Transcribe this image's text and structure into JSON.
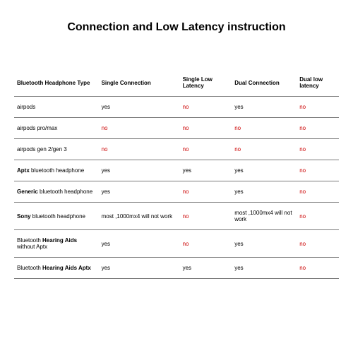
{
  "title": "Connection and Low Latency instruction",
  "colors": {
    "no_color": "#cc0000",
    "text_color": "#000000",
    "border_color": "#7a7a7a",
    "background": "#ffffff"
  },
  "typography": {
    "title_fontsize": 16,
    "table_fontsize": 8,
    "font_family": "Arial"
  },
  "table": {
    "columns": [
      "Bluetooth Headphone Type",
      "Single Connection",
      "Single Low Latency",
      "Dual Connection",
      "Dual low latency"
    ],
    "rows": [
      {
        "type_html": "airpods",
        "sc": "yes",
        "sll": "no",
        "dc": "yes",
        "dll": "no"
      },
      {
        "type_html": "airpods pro/max",
        "sc": "no",
        "sll": "no",
        "dc": "no",
        "dll": "no"
      },
      {
        "type_html": "airpods gen 2/gen 3",
        "sc": "no",
        "sll": "no",
        "dc": "no",
        "dll": "no"
      },
      {
        "type_html": "<b>Aptx</b> bluetooth headphone",
        "sc": "yes",
        "sll": "yes",
        "dc": "yes",
        "dll": "no"
      },
      {
        "type_html": "<b>Generic</b> bluetooth headphone",
        "sc": "yes",
        "sll": "no",
        "dc": "yes",
        "dll": "no"
      },
      {
        "type_html": "<b>Sony</b> bluetooth headphone",
        "sc": "most ,1000mx4 will not work",
        "sll": "no",
        "dc": "most ,1000mx4 will not work",
        "dll": "no"
      },
      {
        "type_html": "Bluetooth <b>Hearing Aids</b> without Aptx",
        "sc": "yes",
        "sll": "no",
        "dc": "yes",
        "dll": "no"
      },
      {
        "type_html": "Bluetooth <b>Hearing Aids Aptx</b>",
        "sc": "yes",
        "sll": "yes",
        "dc": "yes",
        "dll": "no"
      }
    ]
  }
}
